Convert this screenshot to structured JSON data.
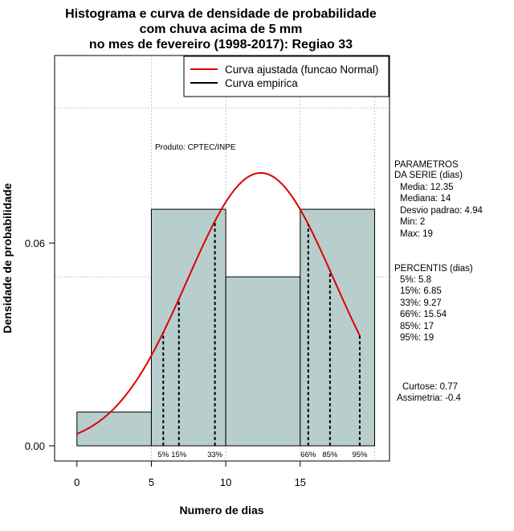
{
  "chart_data": {
    "type": "bar",
    "title_lines": [
      "Histograma e curva de densidade de probabilidade",
      "com chuva acima de 5 mm",
      "no mes de fevereiro (1998-2017): Regiao 33"
    ],
    "xlabel": "Numero de dias",
    "ylabel": "Densidade de probabilidade",
    "xlim": [
      -1.5,
      21.0
    ],
    "ylim": [
      -0.0045,
      0.1155
    ],
    "x_ticks": [
      0,
      5,
      10,
      15
    ],
    "y_ticks": [
      0.0,
      0.06
    ],
    "y_tick_labels": [
      "0.00",
      "0.06"
    ],
    "grid_x": [
      5,
      10,
      15,
      20
    ],
    "grid_y": [
      0.05,
      0.1
    ],
    "bins": [
      {
        "start": 0,
        "end": 5,
        "density": 0.01
      },
      {
        "start": 5,
        "end": 10,
        "density": 0.07
      },
      {
        "start": 10,
        "end": 15,
        "density": 0.05
      },
      {
        "start": 15,
        "end": 20,
        "density": 0.07
      }
    ],
    "bar_color": "#b7cecd",
    "curve": {
      "name": "Curva ajustada (funcao Normal)",
      "mean": 12.35,
      "sd": 4.94,
      "x_from": 0,
      "x_to": 19,
      "color": "#dd0000"
    },
    "empirical": {
      "name": "Curva empirica",
      "color": "#000000"
    },
    "percentiles": [
      {
        "label": "5%",
        "x": 5.8
      },
      {
        "label": "15%",
        "x": 6.85
      },
      {
        "label": "33%",
        "x": 9.27
      },
      {
        "label": "66%",
        "x": 15.54
      },
      {
        "label": "85%",
        "x": 17
      },
      {
        "label": "95%",
        "x": 19
      }
    ],
    "annotation": "Produto: CPTEC/INPE",
    "legend_position": "top-right"
  },
  "side_panel": {
    "params_header": [
      "PARAMETROS",
      "DA SERIE (dias)"
    ],
    "params": [
      "Media: 12.35",
      "Mediana: 14",
      "Desvio padrao: 4.94",
      "Min: 2",
      "Max: 19"
    ],
    "percentis_header": "PERCENTIS (dias)",
    "percentis": [
      "5%: 5.8",
      "15%: 6.85",
      "33%: 9.27",
      "66%: 15.54",
      "85%: 17",
      "95%: 19"
    ],
    "stats": [
      "Curtose: 0.77",
      "Assimetria: -0.4"
    ]
  }
}
